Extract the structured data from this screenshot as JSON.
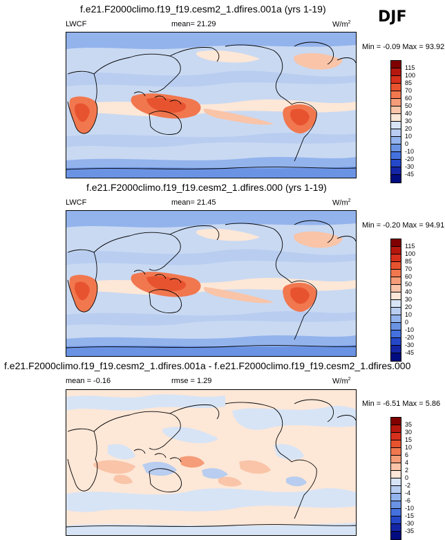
{
  "season": "DJF",
  "panels": [
    {
      "title": "f.e21.F2000climo.f19_f19.cesm2_1.dfires.001a (yrs 1-19)",
      "left_label": "LWCF",
      "center_label": "mean=  21.29",
      "units": "W/m",
      "units_sup": "2",
      "minmax": "Min = -0.09 Max = 93.92",
      "colorbar": {
        "labels": [
          "115",
          "100",
          "85",
          "70",
          "60",
          "50",
          "40",
          "30",
          "20",
          "10",
          "0",
          "-10",
          "-20",
          "-30",
          "-45"
        ],
        "colors": [
          "#800000",
          "#b5170f",
          "#d6301c",
          "#e8532f",
          "#f1774f",
          "#f59c78",
          "#f9c4a8",
          "#fde7d7",
          "#d7e4f5",
          "#b8cdf0",
          "#93b3ec",
          "#6b93e4",
          "#4471dd",
          "#2548c9",
          "#1425a6",
          "#000c80"
        ]
      }
    },
    {
      "title": "f.e21.F2000climo.f19_f19.cesm2_1.dfires.000 (yrs 1-19)",
      "left_label": "LWCF",
      "center_label": "mean=  21.45",
      "units": "W/m",
      "units_sup": "2",
      "minmax": "Min = -0.20 Max = 94.91",
      "colorbar": {
        "labels": [
          "115",
          "100",
          "85",
          "70",
          "60",
          "50",
          "40",
          "30",
          "20",
          "10",
          "0",
          "-10",
          "-20",
          "-30",
          "-45"
        ],
        "colors": [
          "#800000",
          "#b5170f",
          "#d6301c",
          "#e8532f",
          "#f1774f",
          "#f59c78",
          "#f9c4a8",
          "#fde7d7",
          "#d7e4f5",
          "#b8cdf0",
          "#93b3ec",
          "#6b93e4",
          "#4471dd",
          "#2548c9",
          "#1425a6",
          "#000c80"
        ]
      }
    },
    {
      "title": "f.e21.F2000climo.f19_f19.cesm2_1.dfires.001a - f.e21.F2000climo.f19_f19.cesm2_1.dfires.000",
      "left_label": "mean = -0.16",
      "center_label": "rmse =  1.29",
      "units": "W/m",
      "units_sup": "2",
      "minmax": "Min = -6.51 Max =  5.86",
      "colorbar": {
        "labels": [
          "35",
          "30",
          "15",
          "10",
          "6",
          "4",
          "2",
          "0",
          "-2",
          "-4",
          "-6",
          "-10",
          "-15",
          "-30",
          "-35"
        ],
        "colors": [
          "#800000",
          "#b5170f",
          "#d6301c",
          "#e8532f",
          "#f1774f",
          "#f59c78",
          "#f9c4a8",
          "#fde7d7",
          "#d7e4f5",
          "#b8cdf0",
          "#93b3ec",
          "#6b93e4",
          "#4471dd",
          "#2548c9",
          "#1425a6",
          "#000c80"
        ]
      }
    }
  ]
}
